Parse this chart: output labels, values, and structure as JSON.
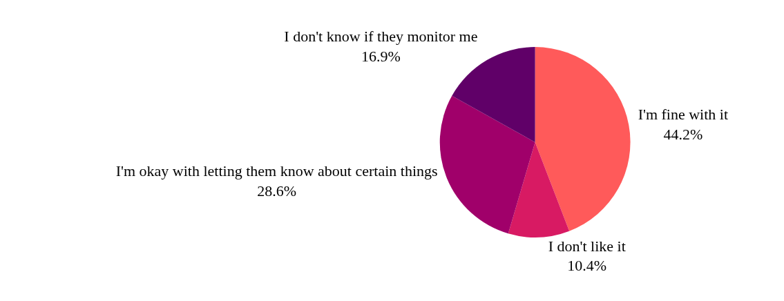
{
  "chart_data": {
    "type": "pie",
    "categories": [
      "I'm fine with it",
      "I don't like it",
      "I'm okay with letting them know about certain things",
      "I don't know if they monitor me"
    ],
    "values": [
      44.2,
      10.4,
      28.6,
      16.9
    ],
    "value_labels": [
      "44.2%",
      "10.4%",
      "28.6%",
      "16.9%"
    ],
    "colors": [
      "#ff5a5a",
      "#d81a63",
      "#a0006a",
      "#600068"
    ],
    "legend": false
  }
}
